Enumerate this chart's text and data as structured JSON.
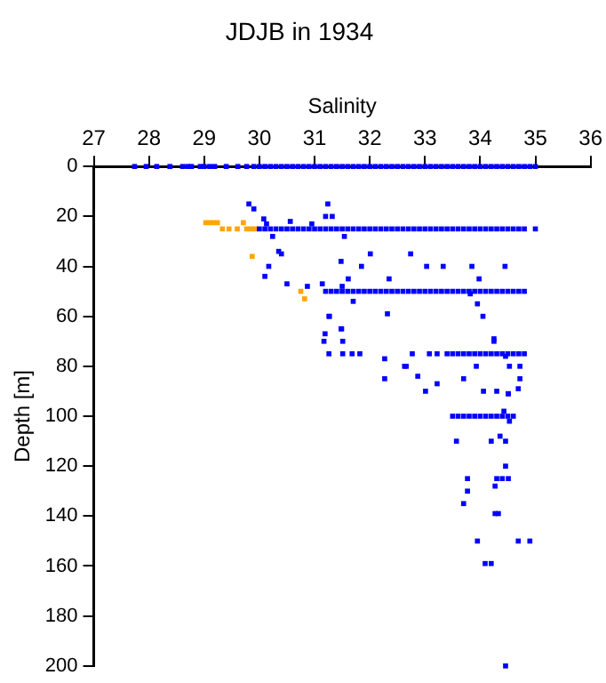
{
  "chart_data": {
    "type": "scatter",
    "title": "JDJB in 1934",
    "xlabel": "Salinity",
    "ylabel": "Depth [m]",
    "xlim": [
      27,
      36
    ],
    "xticks": [
      27,
      28,
      29,
      30,
      31,
      32,
      33,
      34,
      35,
      36
    ],
    "ylim": [
      200,
      0
    ],
    "yticks": [
      0,
      20,
      40,
      60,
      80,
      100,
      120,
      140,
      160,
      180,
      200
    ],
    "grid": false,
    "legend": false,
    "marker": "square",
    "series": [
      {
        "color": "#0000ff",
        "x": [
          27.74,
          27.95,
          28.14,
          28.38,
          28.61,
          28.7,
          28.77,
          28.93,
          29.0,
          29.1,
          29.19,
          29.4,
          29.61,
          29.77,
          29.9,
          30.0,
          30.1,
          30.2,
          30.3,
          30.4,
          30.5,
          30.6,
          30.7,
          30.8,
          30.9,
          31.0,
          31.1,
          31.2,
          31.3,
          31.4,
          31.5,
          31.6,
          31.7,
          31.8,
          31.9,
          32.0,
          32.1,
          32.2,
          32.3,
          32.4,
          32.5,
          32.6,
          32.7,
          32.8,
          32.9,
          33.0,
          33.1,
          33.2,
          33.3,
          33.4,
          33.5,
          33.6,
          33.7,
          33.8,
          33.9,
          34.0,
          34.1,
          34.2,
          34.3,
          34.4,
          34.5,
          34.6,
          34.7,
          34.8,
          34.9,
          35.0,
          30.0,
          30.1,
          30.2,
          30.3,
          30.4,
          30.5,
          30.6,
          30.7,
          30.8,
          30.9,
          31.0,
          31.1,
          31.2,
          31.3,
          31.4,
          31.5,
          31.6,
          31.7,
          31.8,
          31.9,
          32.0,
          32.1,
          32.2,
          32.3,
          32.4,
          32.5,
          32.6,
          32.7,
          32.8,
          32.9,
          33.0,
          33.1,
          33.2,
          33.3,
          33.4,
          33.5,
          33.6,
          33.7,
          33.8,
          33.9,
          34.0,
          34.1,
          34.2,
          34.3,
          34.4,
          34.5,
          34.6,
          34.7,
          34.8,
          35.0,
          31.2,
          31.3,
          31.4,
          31.5,
          31.6,
          31.7,
          31.8,
          31.9,
          32.0,
          32.1,
          32.2,
          32.3,
          32.4,
          32.5,
          32.6,
          32.7,
          32.8,
          32.9,
          33.0,
          33.1,
          33.2,
          33.3,
          33.4,
          33.5,
          33.6,
          33.7,
          33.8,
          33.9,
          34.0,
          34.1,
          34.2,
          34.3,
          34.4,
          34.5,
          34.6,
          34.7,
          34.8,
          33.4,
          33.5,
          33.6,
          33.7,
          33.8,
          33.9,
          34.0,
          34.1,
          34.2,
          34.3,
          34.4,
          34.5,
          34.6,
          34.7,
          34.8,
          33.5,
          33.6,
          33.7,
          33.8,
          33.9,
          34.0,
          34.1,
          34.2,
          34.3,
          34.4,
          34.5,
          34.6,
          29.81,
          29.9,
          31.24,
          31.2,
          31.32,
          30.08,
          30.13,
          30.56,
          30.95,
          30.24,
          30.35,
          30.4,
          30.17,
          30.1,
          30.5,
          30.87,
          31.14,
          31.26,
          31.19,
          31.54,
          32.01,
          32.74,
          31.48,
          31.85,
          33.03,
          33.33,
          33.85,
          34.45,
          31.61,
          33.98,
          32.35,
          31.5,
          31.7,
          33.82,
          33.95,
          34.05,
          32.32,
          31.27,
          31.48,
          34.25,
          31.49,
          31.17,
          31.51,
          34.25,
          31.26,
          31.51,
          31.68,
          31.82,
          32.77,
          33.08,
          33.22,
          32.27,
          34.46,
          32.63,
          32.66,
          33.93,
          34.53,
          34.72,
          32.87,
          32.27,
          33.22,
          33.7,
          34.72,
          33.01,
          34.06,
          34.3,
          34.51,
          34.69,
          34.51,
          34.43,
          34.53,
          34.36,
          33.57,
          34.2,
          34.46,
          34.46,
          33.77,
          34.3,
          34.4,
          34.51,
          34.27,
          33.77,
          33.7,
          34.27,
          34.33,
          33.95,
          34.69,
          34.9,
          34.09,
          34.2,
          34.46
        ],
        "values": [
          0,
          0,
          0,
          0,
          0,
          0,
          0,
          0,
          0,
          0,
          0,
          0,
          0,
          0,
          0,
          0,
          0,
          0,
          0,
          0,
          0,
          0,
          0,
          0,
          0,
          0,
          0,
          0,
          0,
          0,
          0,
          0,
          0,
          0,
          0,
          0,
          0,
          0,
          0,
          0,
          0,
          0,
          0,
          0,
          0,
          0,
          0,
          0,
          0,
          0,
          0,
          0,
          0,
          0,
          0,
          0,
          0,
          0,
          0,
          0,
          0,
          0,
          0,
          0,
          0,
          0,
          25,
          25,
          25,
          25,
          25,
          25,
          25,
          25,
          25,
          25,
          25,
          25,
          25,
          25,
          25,
          25,
          25,
          25,
          25,
          25,
          25,
          25,
          25,
          25,
          25,
          25,
          25,
          25,
          25,
          25,
          25,
          25,
          25,
          25,
          25,
          25,
          25,
          25,
          25,
          25,
          25,
          25,
          25,
          25,
          25,
          25,
          25,
          25,
          25,
          25,
          50,
          50,
          50,
          50,
          50,
          50,
          50,
          50,
          50,
          50,
          50,
          50,
          50,
          50,
          50,
          50,
          50,
          50,
          50,
          50,
          50,
          50,
          50,
          50,
          50,
          50,
          50,
          50,
          50,
          50,
          50,
          50,
          50,
          50,
          50,
          50,
          50,
          75,
          75,
          75,
          75,
          75,
          75,
          75,
          75,
          75,
          75,
          75,
          75,
          75,
          75,
          75,
          100,
          100,
          100,
          100,
          100,
          100,
          100,
          100,
          100,
          100,
          100,
          100,
          15,
          17,
          15,
          20,
          20,
          21,
          23,
          22,
          23,
          28,
          34,
          35,
          40,
          44,
          47,
          48,
          47,
          60,
          67,
          28,
          35,
          35,
          38,
          40,
          40,
          40,
          40,
          40,
          45,
          45,
          45,
          48,
          54,
          51,
          55,
          60,
          59,
          60,
          65,
          69,
          65,
          70,
          70,
          70,
          75,
          75,
          75,
          75,
          75,
          75,
          75,
          77,
          76,
          80,
          80,
          80,
          80,
          80,
          84,
          85,
          87,
          85,
          85,
          90,
          90,
          90,
          91,
          89,
          91,
          98,
          102,
          108,
          110,
          110,
          110,
          120,
          125,
          125,
          125,
          125,
          128,
          130,
          135,
          139,
          139,
          150,
          150,
          150,
          159,
          159,
          200
        ]
      },
      {
        "color": "#ffa500",
        "x": [
          29.03,
          29.1,
          29.17,
          29.24,
          29.33,
          29.45,
          29.6,
          29.71,
          29.77,
          29.85,
          29.93,
          29.87,
          30.75,
          30.82
        ],
        "values": [
          22.5,
          22.5,
          22.5,
          22.5,
          25,
          25,
          25,
          22.5,
          25,
          25,
          25,
          36,
          50,
          53
        ]
      }
    ]
  }
}
